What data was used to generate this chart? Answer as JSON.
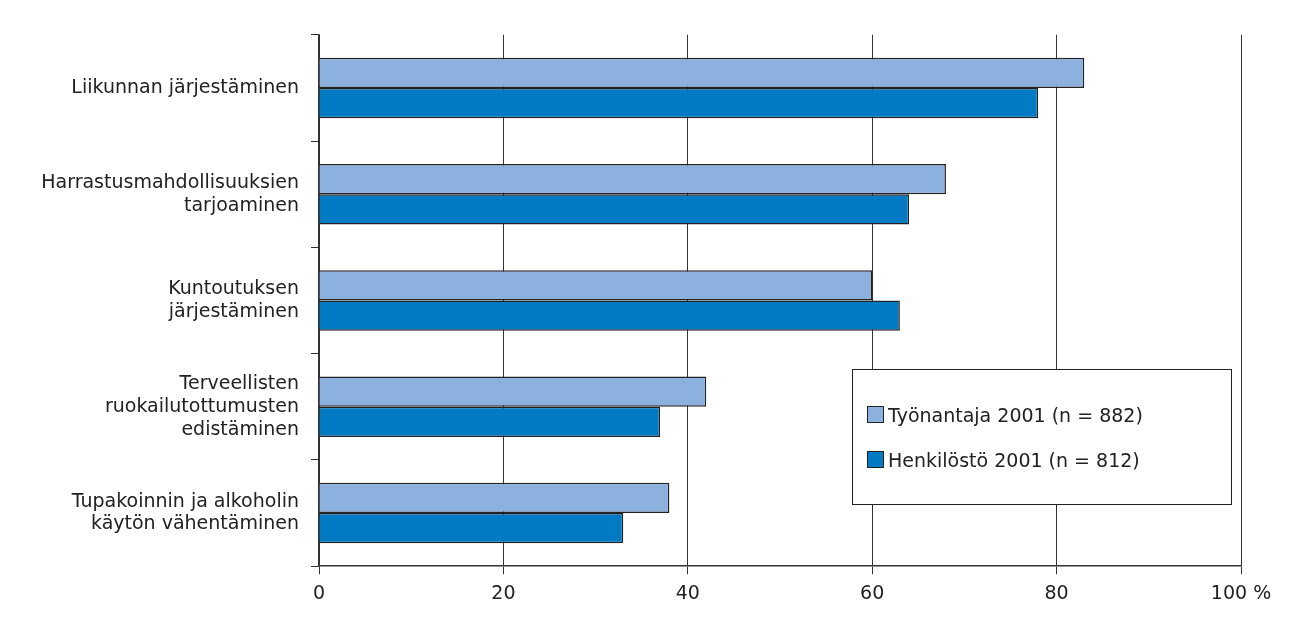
{
  "chart_data": {
    "type": "bar",
    "orientation": "horizontal",
    "categories": [
      "Liikunnan järjestäminen",
      "Harrastusmahdollisuuksien tarjoaminen",
      "Kuntoutuksen järjestäminen",
      "Terveellisten ruokailutottumusten edistäminen",
      "Tupakoinnin ja alkoholin käytön vähentäminen"
    ],
    "series": [
      {
        "name": "Työnantaja 2001 (n = 882)",
        "color": "#8db1de",
        "values": [
          83,
          68,
          60,
          42,
          38
        ]
      },
      {
        "name": "Henkilöstö 2001 (n = 812)",
        "color": "#037bc4",
        "values": [
          78,
          64,
          63,
          37,
          33
        ]
      }
    ],
    "xlim": [
      0,
      100
    ],
    "xticks": [
      0,
      20,
      40,
      60,
      80,
      {
        "value": 100,
        "label": "100 %"
      }
    ],
    "grid": "x",
    "legend": "bottom right"
  }
}
